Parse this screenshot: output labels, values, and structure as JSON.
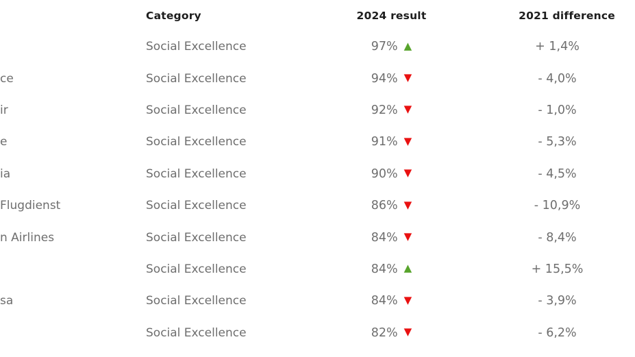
{
  "table": {
    "header": {
      "category": "Category",
      "result": "2024 result",
      "difference": "2021 difference"
    },
    "rows": [
      {
        "name": "",
        "category": "Social Excellence",
        "result": "97%",
        "trend": "up",
        "difference": "+ 1,4%"
      },
      {
        "name": "ce",
        "category": "Social Excellence",
        "result": "94%",
        "trend": "down",
        "difference": "- 4,0%"
      },
      {
        "name": "ir",
        "category": "Social Excellence",
        "result": "92%",
        "trend": "down",
        "difference": "- 1,0%"
      },
      {
        "name": "e",
        "category": "Social Excellence",
        "result": "91%",
        "trend": "down",
        "difference": "- 5,3%"
      },
      {
        "name": "ia",
        "category": "Social Excellence",
        "result": "90%",
        "trend": "down",
        "difference": "- 4,5%"
      },
      {
        "name": "Flugdienst",
        "category": "Social Excellence",
        "result": "86%",
        "trend": "down",
        "difference": "- 10,9%"
      },
      {
        "name": "n Airlines",
        "category": "Social Excellence",
        "result": "84%",
        "trend": "down",
        "difference": "- 8,4%"
      },
      {
        "name": "",
        "category": "Social Excellence",
        "result": "84%",
        "trend": "up",
        "difference": "+ 15,5%"
      },
      {
        "name": "sa",
        "category": "Social Excellence",
        "result": "84%",
        "trend": "down",
        "difference": "- 3,9%"
      },
      {
        "name": "",
        "category": "Social Excellence",
        "result": "82%",
        "trend": "down",
        "difference": "- 6,2%"
      }
    ]
  },
  "icons": {
    "up": "▲",
    "down": "▼"
  },
  "colors": {
    "positive": "#58a42c",
    "negative": "#e91111",
    "header_text": "#1d1d1d",
    "body_text": "#6e6e6e",
    "background": "#ffffff"
  }
}
